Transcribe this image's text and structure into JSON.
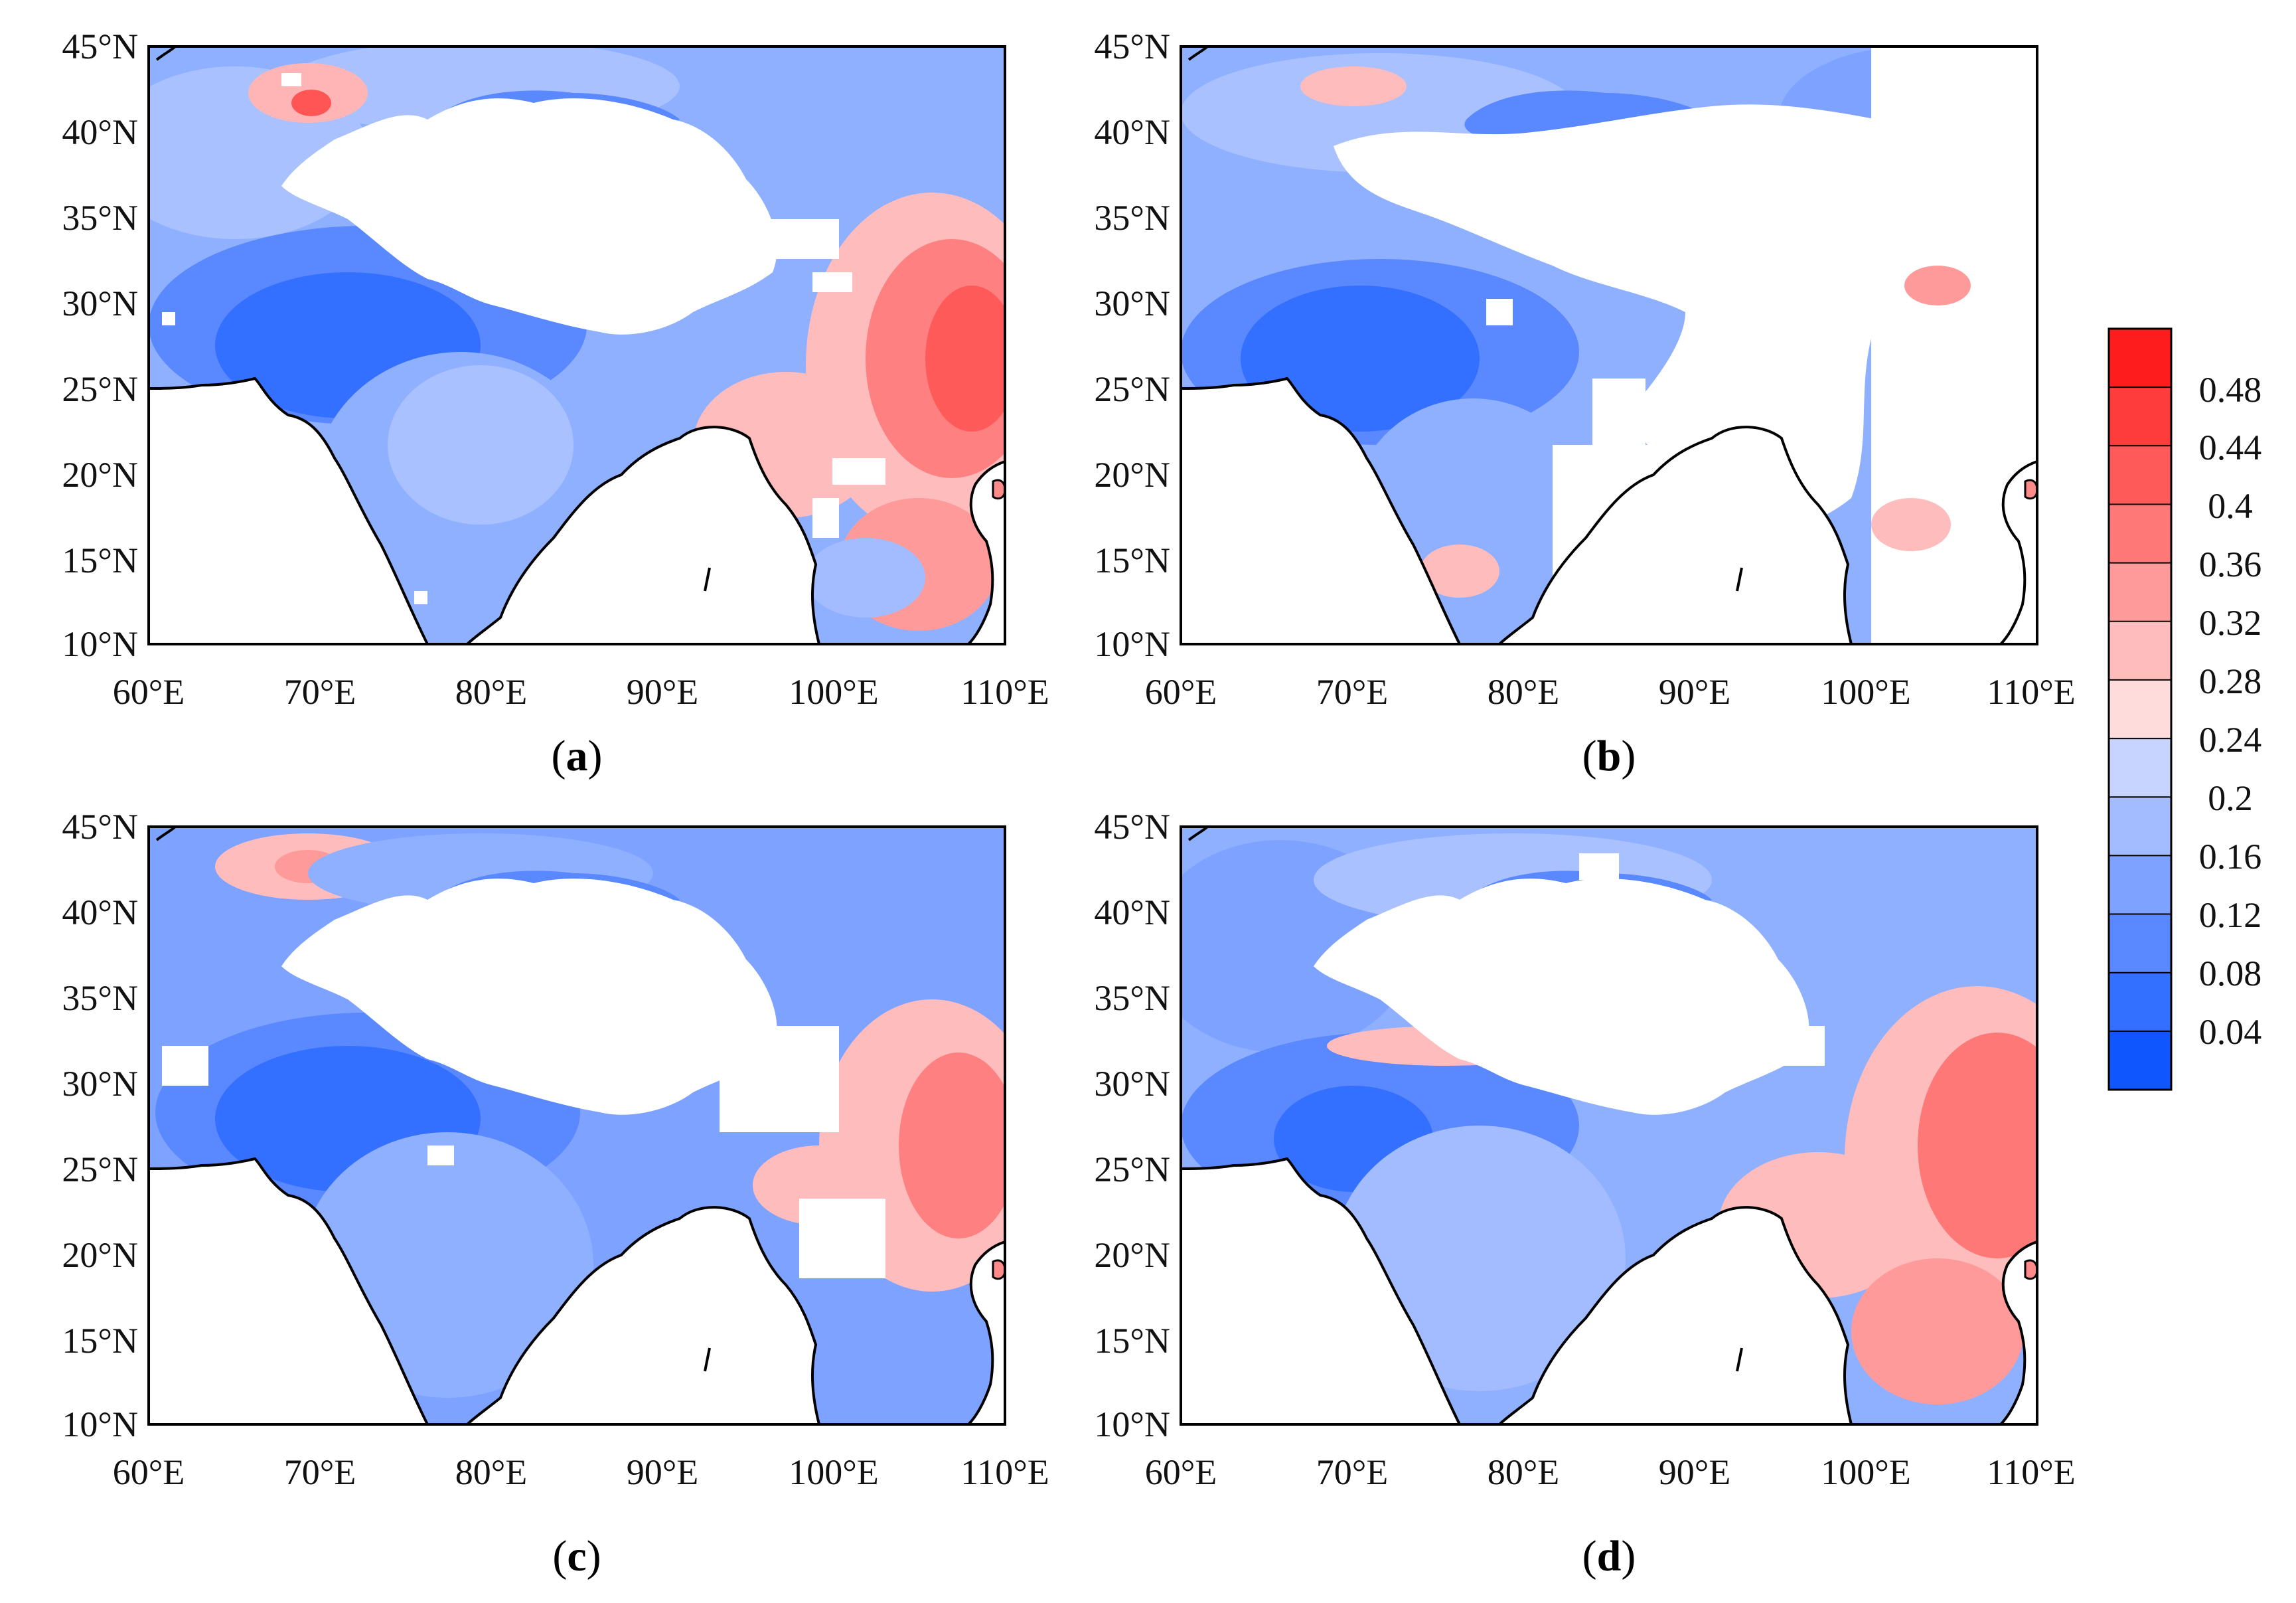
{
  "figure": {
    "panels": [
      {
        "id": "a",
        "label": "(a)",
        "label_letter": "a"
      },
      {
        "id": "b",
        "label": "(b)",
        "label_letter": "b"
      },
      {
        "id": "c",
        "label": "(c)",
        "label_letter": "c"
      },
      {
        "id": "d",
        "label": "(d)",
        "label_letter": "d"
      }
    ],
    "lat_ticks": [
      "45°N",
      "40°N",
      "35°N",
      "30°N",
      "25°N",
      "20°N",
      "15°N",
      "10°N"
    ],
    "lon_ticks": [
      "60°E",
      "70°E",
      "80°E",
      "90°E",
      "100°E",
      "110°E"
    ],
    "lat_range": [
      10,
      45
    ],
    "lon_range": [
      60,
      110
    ],
    "colorbar": {
      "labels": [
        "0.48",
        "0.44",
        "0.4",
        "0.36",
        "0.32",
        "0.28",
        "0.24",
        "0.2",
        "0.16",
        "0.12",
        "0.08",
        "0.04"
      ],
      "colors_top_to_bottom": [
        "#ff1c1c",
        "#ff3c3c",
        "#ff5a5a",
        "#ff7878",
        "#ff9a9a",
        "#ffbcbc",
        "#ffdcdc",
        "#c6d4ff",
        "#a2bcff",
        "#7ea2ff",
        "#5a88ff",
        "#3470ff",
        "#0f56ff"
      ],
      "levels": [
        0.04,
        0.08,
        0.12,
        0.16,
        0.2,
        0.24,
        0.28,
        0.32,
        0.36,
        0.4,
        0.44,
        0.48
      ]
    },
    "colors": {
      "ocean": "#ffffff",
      "no_data": "#ffffff",
      "coastline": "#000000",
      "frame": "#000000"
    }
  }
}
